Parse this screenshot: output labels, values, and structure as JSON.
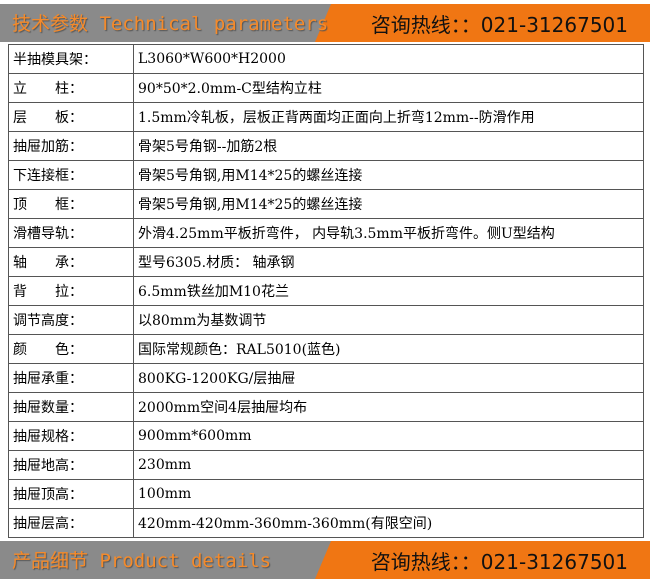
{
  "top_banner": {
    "title": "技术参数 Technical parameters",
    "hotline": "咨询热线：：021-31267501"
  },
  "rows": [
    {
      "label": "半抽模具架：",
      "value": "L3060*W600*H2000"
    },
    {
      "label": "立　　柱：",
      "value": "90*50*2.0mm-C型结构立柱"
    },
    {
      "label": "层　　板：",
      "value": "1.5mm冷轧板，层板正背两面均正面向上折弯12mm--防滑作用"
    },
    {
      "label": "抽屉加筋：",
      "value": "骨架5号角钢--加筋2根"
    },
    {
      "label": "下连接框：",
      "value": "骨架5号角钢,用M14*25的螺丝连接"
    },
    {
      "label": "顶　　框：",
      "value": "骨架5号角钢,用M14*25的螺丝连接"
    },
    {
      "label": "滑槽导轨：",
      "value": "外滑4.25mm平板折弯件， 内导轨3.5mm平板折弯件。侧U型结构"
    },
    {
      "label": "轴　　承：",
      "value": "型号6305.材质： 轴承钢"
    },
    {
      "label": "背　　拉：",
      "value": "6.5mm铁丝加M10花兰"
    },
    {
      "label": "调节高度：",
      "value": "以80mm为基数调节"
    },
    {
      "label": "颜　　色：",
      "value": "国际常规颜色：RAL5010(蓝色)"
    },
    {
      "label": "抽屉承重：",
      "value": "800KG-1200KG/层抽屉"
    },
    {
      "label": "抽屉数量：",
      "value": "2000mm空间4层抽屉均布"
    },
    {
      "label": "抽屉规格：",
      "value": "900mm*600mm"
    },
    {
      "label": "抽屉地高：",
      "value": "230mm"
    },
    {
      "label": "抽屉顶高：",
      "value": "100mm"
    },
    {
      "label": "抽屉层高：",
      "value": "420mm-420mm-360mm-360mm(有限空间)"
    }
  ],
  "bottom_banner": {
    "title": "产品细节 Product details",
    "hotline": "咨询热线：：021-31267501"
  },
  "colors": {
    "orange": "#f07613",
    "gray": "#8a8a8a"
  }
}
